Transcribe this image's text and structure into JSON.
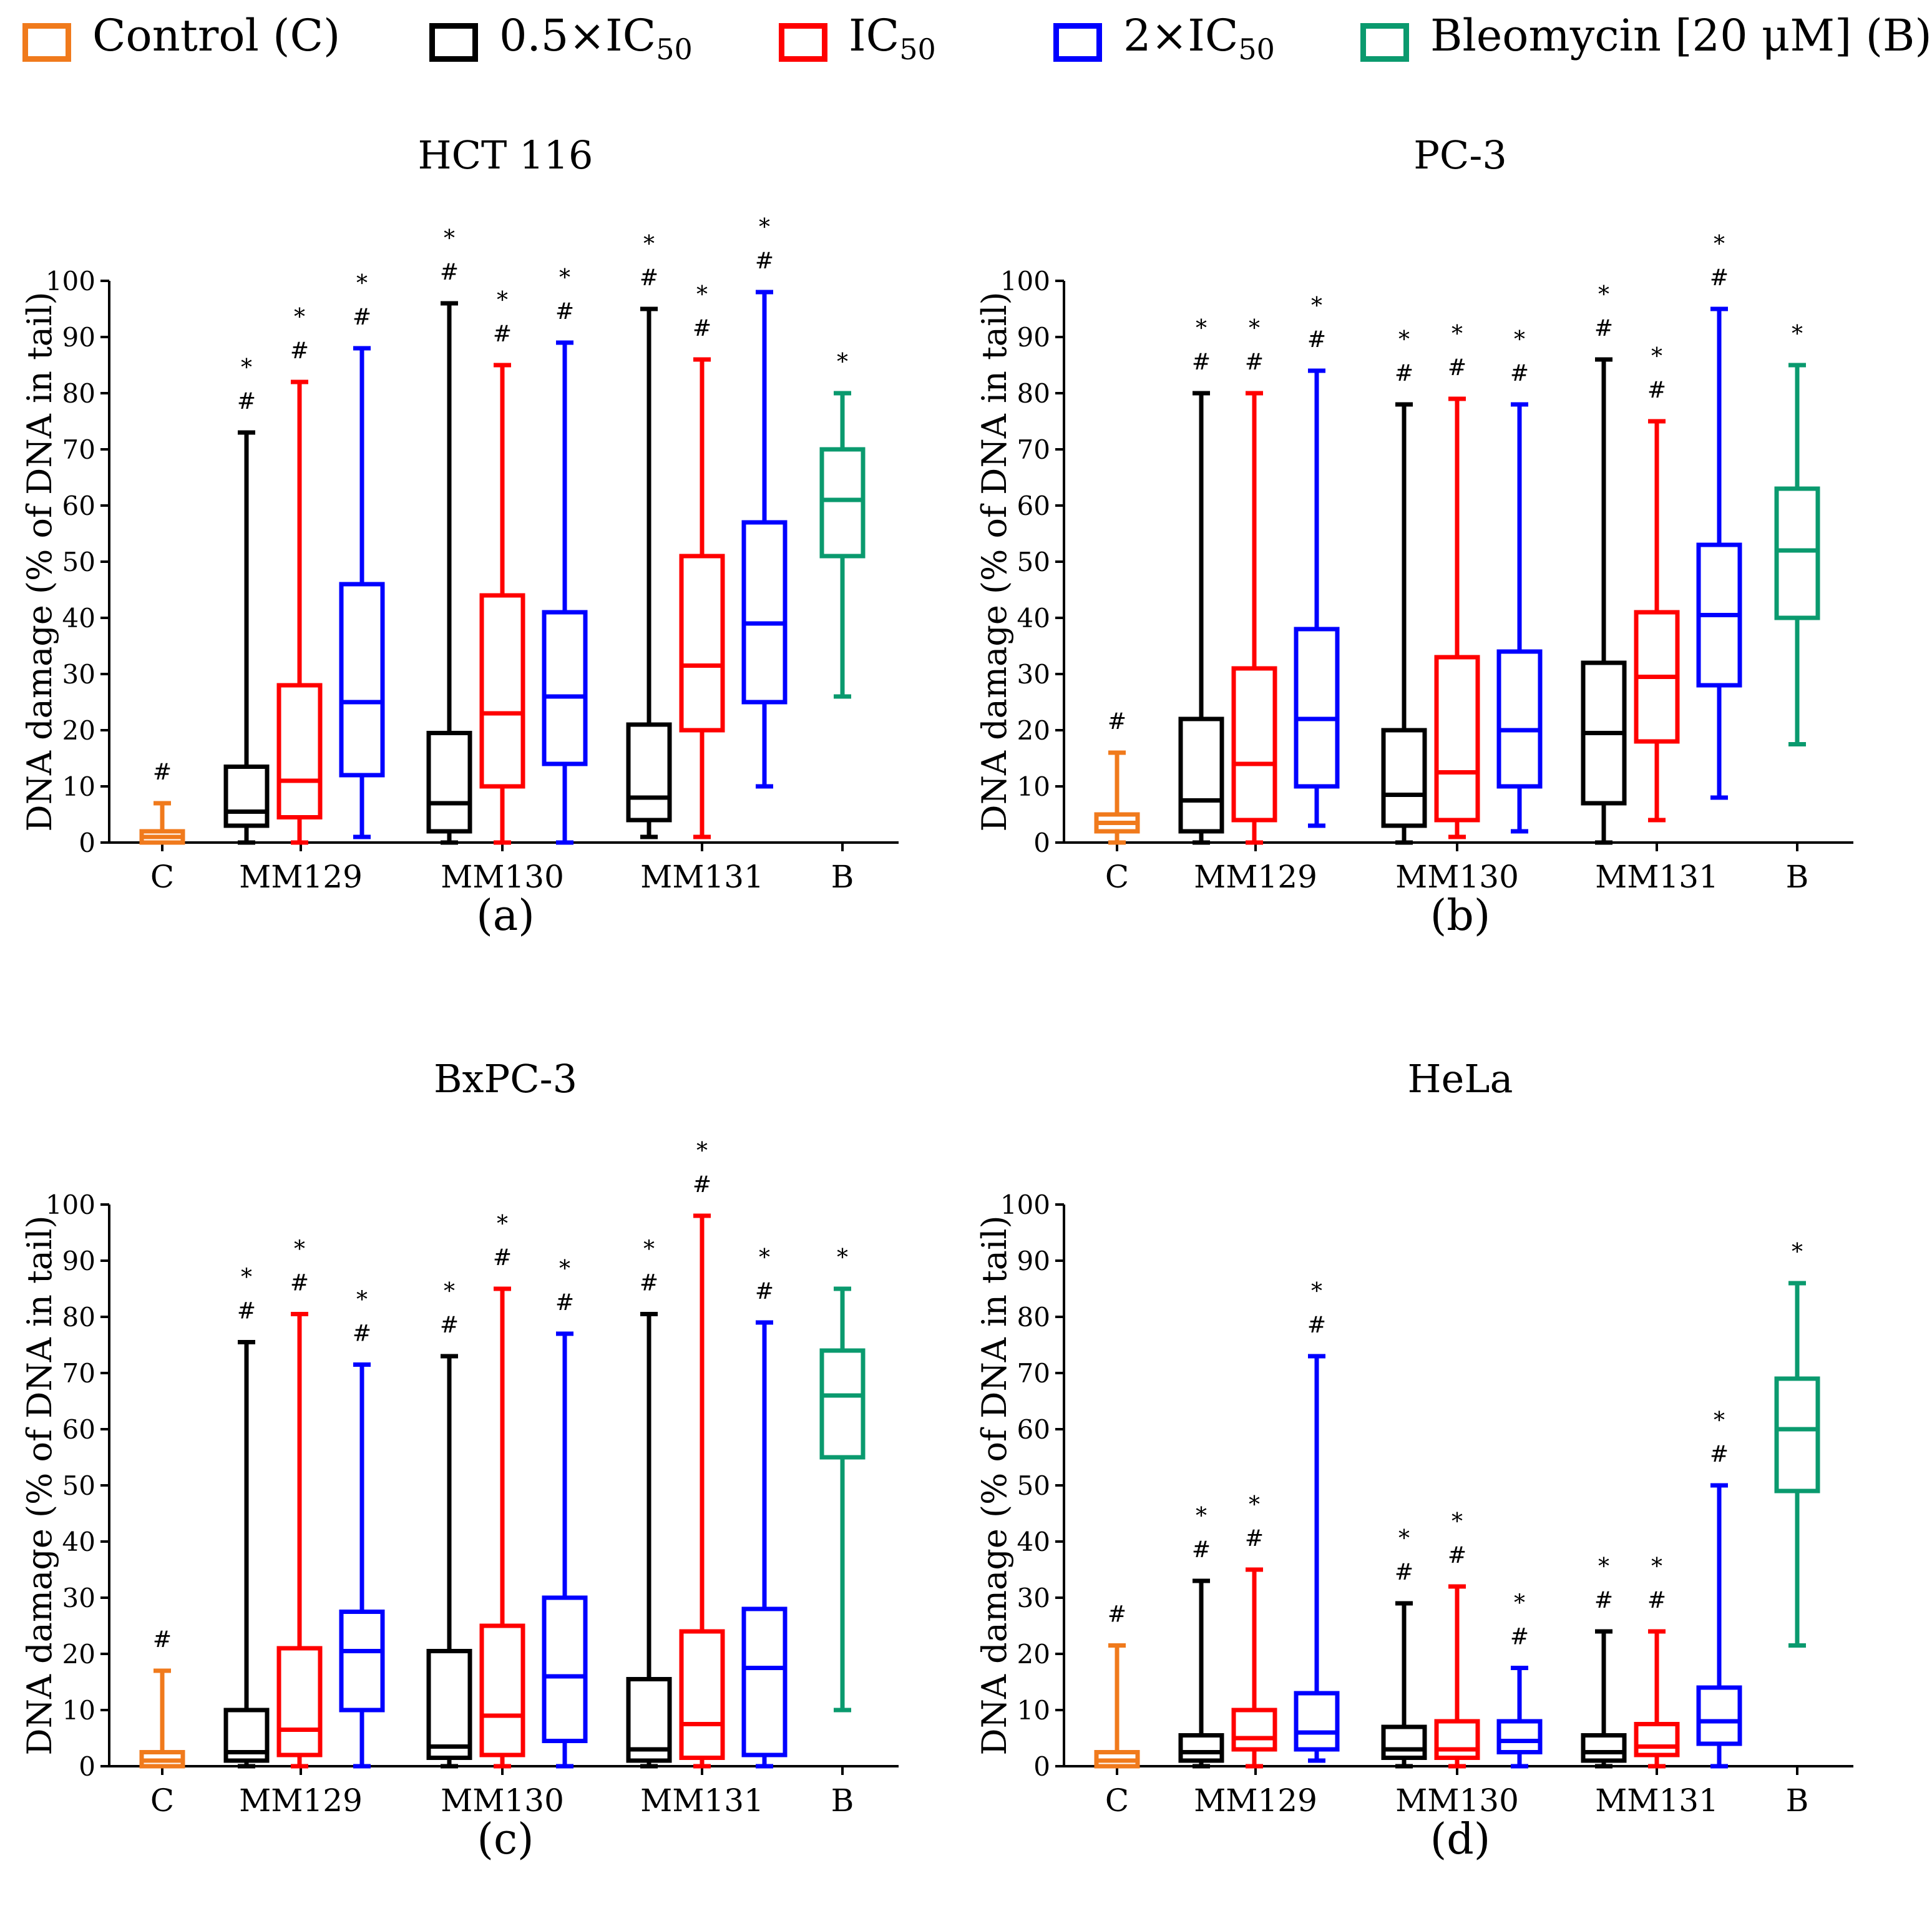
{
  "colors": {
    "C": "#f07a1c",
    "L": "#000000",
    "M": "#ff0000",
    "H": "#0000ff",
    "B": "#0a9a6e"
  },
  "legend": [
    {
      "key": "C",
      "label": "Control (C)",
      "sub": ""
    },
    {
      "key": "L",
      "label": "0.5×IC",
      "sub": "50"
    },
    {
      "key": "M",
      "label": "IC",
      "sub": "50"
    },
    {
      "key": "H",
      "label": "2×IC",
      "sub": "50"
    },
    {
      "key": "B",
      "label": "Bleomycin [20 μM] (B)",
      "sub": ""
    }
  ],
  "chart_data": [
    {
      "type": "boxplot",
      "title": "HCT 116",
      "panel_label": "(a)",
      "ylabel": "DNA damage (% of DNA in tail)",
      "ylim": [
        0,
        100
      ],
      "yticks": [
        "0",
        "10",
        "20",
        "30",
        "40",
        "50",
        "60",
        "70",
        "80",
        "90",
        "100"
      ],
      "categories": [
        "C",
        "MM129",
        "MM130",
        "MM131",
        "B"
      ],
      "boxes": [
        {
          "group": "C",
          "series": "C",
          "min": 0,
          "q1": 0,
          "median": 1,
          "q3": 2,
          "max": 7,
          "sig": "#"
        },
        {
          "group": "MM129",
          "series": "L",
          "min": 0,
          "q1": 3,
          "median": 5.5,
          "q3": 13.5,
          "max": 73,
          "sig": "* #"
        },
        {
          "group": "MM129",
          "series": "M",
          "min": 0,
          "q1": 4.5,
          "median": 11,
          "q3": 28,
          "max": 82,
          "sig": "* #"
        },
        {
          "group": "MM129",
          "series": "H",
          "min": 1,
          "q1": 12,
          "median": 25,
          "q3": 46,
          "max": 88,
          "sig": "* #"
        },
        {
          "group": "MM130",
          "series": "L",
          "min": 0,
          "q1": 2,
          "median": 7,
          "q3": 19.5,
          "max": 96,
          "sig": "* #"
        },
        {
          "group": "MM130",
          "series": "M",
          "min": 0,
          "q1": 10,
          "median": 23,
          "q3": 44,
          "max": 85,
          "sig": "* #"
        },
        {
          "group": "MM130",
          "series": "H",
          "min": 0,
          "q1": 14,
          "median": 26,
          "q3": 41,
          "max": 89,
          "sig": "* #"
        },
        {
          "group": "MM131",
          "series": "L",
          "min": 1,
          "q1": 4,
          "median": 8,
          "q3": 21,
          "max": 95,
          "sig": "* #"
        },
        {
          "group": "MM131",
          "series": "M",
          "min": 1,
          "q1": 20,
          "median": 31.5,
          "q3": 51,
          "max": 86,
          "sig": "* #"
        },
        {
          "group": "MM131",
          "series": "H",
          "min": 10,
          "q1": 25,
          "median": 39,
          "q3": 57,
          "max": 98,
          "sig": "* #"
        },
        {
          "group": "B",
          "series": "B",
          "min": 26,
          "q1": 51,
          "median": 61,
          "q3": 70,
          "max": 80,
          "sig": "*"
        }
      ]
    },
    {
      "type": "boxplot",
      "title": "PC-3",
      "panel_label": "(b)",
      "ylabel": "DNA damage (% of DNA in tail)",
      "ylim": [
        0,
        100
      ],
      "yticks": [
        "0",
        "10",
        "20",
        "30",
        "40",
        "50",
        "60",
        "70",
        "80",
        "90",
        "100"
      ],
      "categories": [
        "C",
        "MM129",
        "MM130",
        "MM131",
        "B"
      ],
      "boxes": [
        {
          "group": "C",
          "series": "C",
          "min": 0,
          "q1": 2,
          "median": 3.5,
          "q3": 5,
          "max": 16,
          "sig": "#"
        },
        {
          "group": "MM129",
          "series": "L",
          "min": 0,
          "q1": 2,
          "median": 7.5,
          "q3": 22,
          "max": 80,
          "sig": "* #"
        },
        {
          "group": "MM129",
          "series": "M",
          "min": 0,
          "q1": 4,
          "median": 14,
          "q3": 31,
          "max": 80,
          "sig": "* #"
        },
        {
          "group": "MM129",
          "series": "H",
          "min": 3,
          "q1": 10,
          "median": 22,
          "q3": 38,
          "max": 84,
          "sig": "* #"
        },
        {
          "group": "MM130",
          "series": "L",
          "min": 0,
          "q1": 3,
          "median": 8.5,
          "q3": 20,
          "max": 78,
          "sig": "* #"
        },
        {
          "group": "MM130",
          "series": "M",
          "min": 1,
          "q1": 4,
          "median": 12.5,
          "q3": 33,
          "max": 79,
          "sig": "* #"
        },
        {
          "group": "MM130",
          "series": "H",
          "min": 2,
          "q1": 10,
          "median": 20,
          "q3": 34,
          "max": 78,
          "sig": "* #"
        },
        {
          "group": "MM131",
          "series": "L",
          "min": 0,
          "q1": 7,
          "median": 19.5,
          "q3": 32,
          "max": 86,
          "sig": "* #"
        },
        {
          "group": "MM131",
          "series": "M",
          "min": 4,
          "q1": 18,
          "median": 29.5,
          "q3": 41,
          "max": 75,
          "sig": "* #"
        },
        {
          "group": "MM131",
          "series": "H",
          "min": 8,
          "q1": 28,
          "median": 40.5,
          "q3": 53,
          "max": 95,
          "sig": "* #"
        },
        {
          "group": "B",
          "series": "B",
          "min": 17.5,
          "q1": 40,
          "median": 52,
          "q3": 63,
          "max": 85,
          "sig": "*"
        }
      ]
    },
    {
      "type": "boxplot",
      "title": "BxPC-3",
      "panel_label": "(c)",
      "ylabel": "DNA damage (% of DNA in tail)",
      "ylim": [
        0,
        100
      ],
      "yticks": [
        "0",
        "10",
        "20",
        "30",
        "40",
        "50",
        "60",
        "70",
        "80",
        "90",
        "100"
      ],
      "categories": [
        "C",
        "MM129",
        "MM130",
        "MM131",
        "B"
      ],
      "boxes": [
        {
          "group": "C",
          "series": "C",
          "min": 0,
          "q1": 0,
          "median": 1,
          "q3": 2.5,
          "max": 17,
          "sig": "#"
        },
        {
          "group": "MM129",
          "series": "L",
          "min": 0,
          "q1": 1,
          "median": 2.5,
          "q3": 10,
          "max": 75.5,
          "sig": "* #"
        },
        {
          "group": "MM129",
          "series": "M",
          "min": 0,
          "q1": 2,
          "median": 6.5,
          "q3": 21,
          "max": 80.5,
          "sig": "* #"
        },
        {
          "group": "MM129",
          "series": "H",
          "min": 0,
          "q1": 10,
          "median": 20.5,
          "q3": 27.5,
          "max": 71.5,
          "sig": "* #"
        },
        {
          "group": "MM130",
          "series": "L",
          "min": 0,
          "q1": 1.5,
          "median": 3.5,
          "q3": 20.5,
          "max": 73,
          "sig": "* #"
        },
        {
          "group": "MM130",
          "series": "M",
          "min": 0,
          "q1": 2,
          "median": 9,
          "q3": 25,
          "max": 85,
          "sig": "* #"
        },
        {
          "group": "MM130",
          "series": "H",
          "min": 0,
          "q1": 4.5,
          "median": 16,
          "q3": 30,
          "max": 77,
          "sig": "* #"
        },
        {
          "group": "MM131",
          "series": "L",
          "min": 0,
          "q1": 1,
          "median": 3,
          "q3": 15.5,
          "max": 80.5,
          "sig": "* #"
        },
        {
          "group": "MM131",
          "series": "M",
          "min": 0,
          "q1": 1.5,
          "median": 7.5,
          "q3": 24,
          "max": 98,
          "sig": "* #"
        },
        {
          "group": "MM131",
          "series": "H",
          "min": 0,
          "q1": 2,
          "median": 17.5,
          "q3": 28,
          "max": 79,
          "sig": "* #"
        },
        {
          "group": "B",
          "series": "B",
          "min": 10,
          "q1": 55,
          "median": 66,
          "q3": 74,
          "max": 85,
          "sig": "*"
        }
      ]
    },
    {
      "type": "boxplot",
      "title": "HeLa",
      "panel_label": "(d)",
      "ylabel": "DNA damage (% of DNA in tail)",
      "ylim": [
        0,
        100
      ],
      "yticks": [
        "0",
        "10",
        "20",
        "30",
        "40",
        "50",
        "60",
        "70",
        "80",
        "90",
        "100"
      ],
      "categories": [
        "C",
        "MM129",
        "MM130",
        "MM131",
        "B"
      ],
      "boxes": [
        {
          "group": "C",
          "series": "C",
          "min": 0,
          "q1": 0,
          "median": 1,
          "q3": 2.5,
          "max": 21.5,
          "sig": "#"
        },
        {
          "group": "MM129",
          "series": "L",
          "min": 0,
          "q1": 1,
          "median": 2.5,
          "q3": 5.5,
          "max": 33,
          "sig": "* #"
        },
        {
          "group": "MM129",
          "series": "M",
          "min": 0,
          "q1": 3,
          "median": 5,
          "q3": 10,
          "max": 35,
          "sig": "* #"
        },
        {
          "group": "MM129",
          "series": "H",
          "min": 1,
          "q1": 3,
          "median": 6,
          "q3": 13,
          "max": 73,
          "sig": "* #"
        },
        {
          "group": "MM130",
          "series": "L",
          "min": 0,
          "q1": 1.5,
          "median": 3,
          "q3": 7,
          "max": 29,
          "sig": "* #"
        },
        {
          "group": "MM130",
          "series": "M",
          "min": 0,
          "q1": 1.5,
          "median": 3,
          "q3": 8,
          "max": 32,
          "sig": "* #"
        },
        {
          "group": "MM130",
          "series": "H",
          "min": 0,
          "q1": 2.5,
          "median": 4.5,
          "q3": 8,
          "max": 17.5,
          "sig": "* #"
        },
        {
          "group": "MM131",
          "series": "L",
          "min": 0,
          "q1": 1,
          "median": 2.5,
          "q3": 5.5,
          "max": 24,
          "sig": "* #"
        },
        {
          "group": "MM131",
          "series": "M",
          "min": 0,
          "q1": 2,
          "median": 3.5,
          "q3": 7.5,
          "max": 24,
          "sig": "* #"
        },
        {
          "group": "MM131",
          "series": "H",
          "min": 0,
          "q1": 4,
          "median": 8,
          "q3": 14,
          "max": 50,
          "sig": "* #"
        },
        {
          "group": "B",
          "series": "B",
          "min": 21.5,
          "q1": 49,
          "median": 60,
          "q3": 69,
          "max": 86,
          "sig": "*"
        }
      ]
    }
  ]
}
